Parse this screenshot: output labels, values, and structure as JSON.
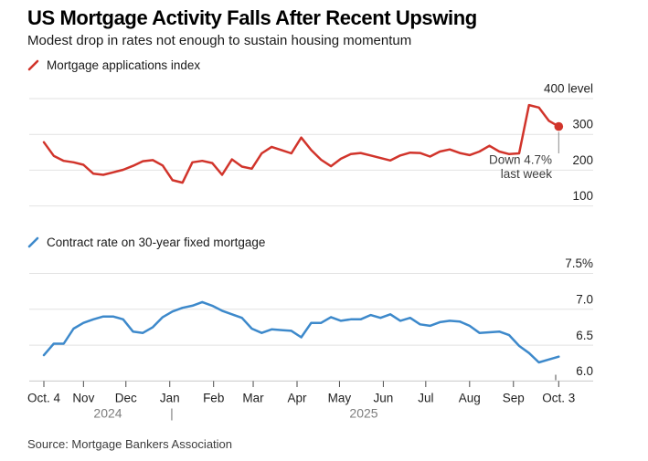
{
  "header": {
    "title": "US Mortgage Activity Falls After Recent Upswing",
    "subtitle": "Modest drop in rates not enough to sustain housing momentum"
  },
  "colors": {
    "applications_line": "#d1342b",
    "rate_line": "#3d89cb",
    "gridline": "#e2e2e2",
    "axis_line": "#c9c9c9",
    "tick": "#4a4a4a",
    "axis_label": "#1f1f1f",
    "year_label": "#7d7d7d",
    "annotation_text": "#3d3d3d",
    "annotation_connector": "#8a8a8a"
  },
  "x_axis": {
    "months": [
      "Oct. 4",
      "Nov",
      "Dec",
      "Jan",
      "Feb",
      "Mar",
      "Apr",
      "May",
      "Jun",
      "Jul",
      "Aug",
      "Sep",
      "Oct. 3"
    ],
    "years": [
      "2024",
      "2025"
    ],
    "year_separator": "|"
  },
  "source": "Source: Mortgage Bankers Association",
  "chart_data": [
    {
      "type": "line",
      "name": "Mortgage applications index",
      "legend_label": "Mortgage applications index",
      "x_unit": "weekly, Oct. 4 2024 to Oct. 3 2025",
      "ylim": [
        100,
        400
      ],
      "y_tick_values": [
        400,
        300,
        200,
        100
      ],
      "y_tick_labels": [
        "400 level",
        "300",
        "200",
        "100"
      ],
      "legend_position": "top-left",
      "grid": "horizontal",
      "values": [
        278,
        240,
        226,
        222,
        215,
        190,
        187,
        194,
        201,
        212,
        225,
        228,
        213,
        172,
        165,
        222,
        226,
        220,
        187,
        230,
        210,
        204,
        247,
        265,
        256,
        247,
        291,
        256,
        229,
        211,
        232,
        245,
        248,
        241,
        234,
        227,
        241,
        249,
        248,
        238,
        252,
        258,
        248,
        242,
        252,
        268,
        252,
        245,
        247,
        382,
        375,
        338,
        322
      ],
      "end_point_marker": true,
      "annotation": {
        "lines": [
          "Down 4.7%",
          "last week"
        ]
      }
    },
    {
      "type": "line",
      "name": "Contract rate on 30-year fixed mortgage",
      "legend_label": "Contract rate on 30-year fixed mortgage",
      "x_unit": "weekly, Oct. 4 2024 to Oct. 3 2025",
      "ylim": [
        6.0,
        7.5
      ],
      "y_tick_values": [
        7.5,
        7.0,
        6.5,
        6.0
      ],
      "y_tick_labels": [
        "7.5%",
        "7.0",
        "6.5",
        "6.0"
      ],
      "legend_position": "mid-left",
      "grid": "horizontal",
      "values": [
        6.36,
        6.52,
        6.52,
        6.73,
        6.81,
        6.86,
        6.9,
        6.9,
        6.86,
        6.69,
        6.67,
        6.75,
        6.89,
        6.97,
        7.02,
        7.05,
        7.1,
        7.05,
        6.98,
        6.93,
        6.88,
        6.73,
        6.67,
        6.72,
        6.71,
        6.7,
        6.61,
        6.81,
        6.81,
        6.89,
        6.84,
        6.86,
        6.86,
        6.92,
        6.88,
        6.93,
        6.84,
        6.88,
        6.79,
        6.77,
        6.82,
        6.84,
        6.83,
        6.77,
        6.67,
        6.68,
        6.69,
        6.64,
        6.49,
        6.39,
        6.26,
        6.3,
        6.34
      ],
      "end_point_marker": false
    }
  ]
}
